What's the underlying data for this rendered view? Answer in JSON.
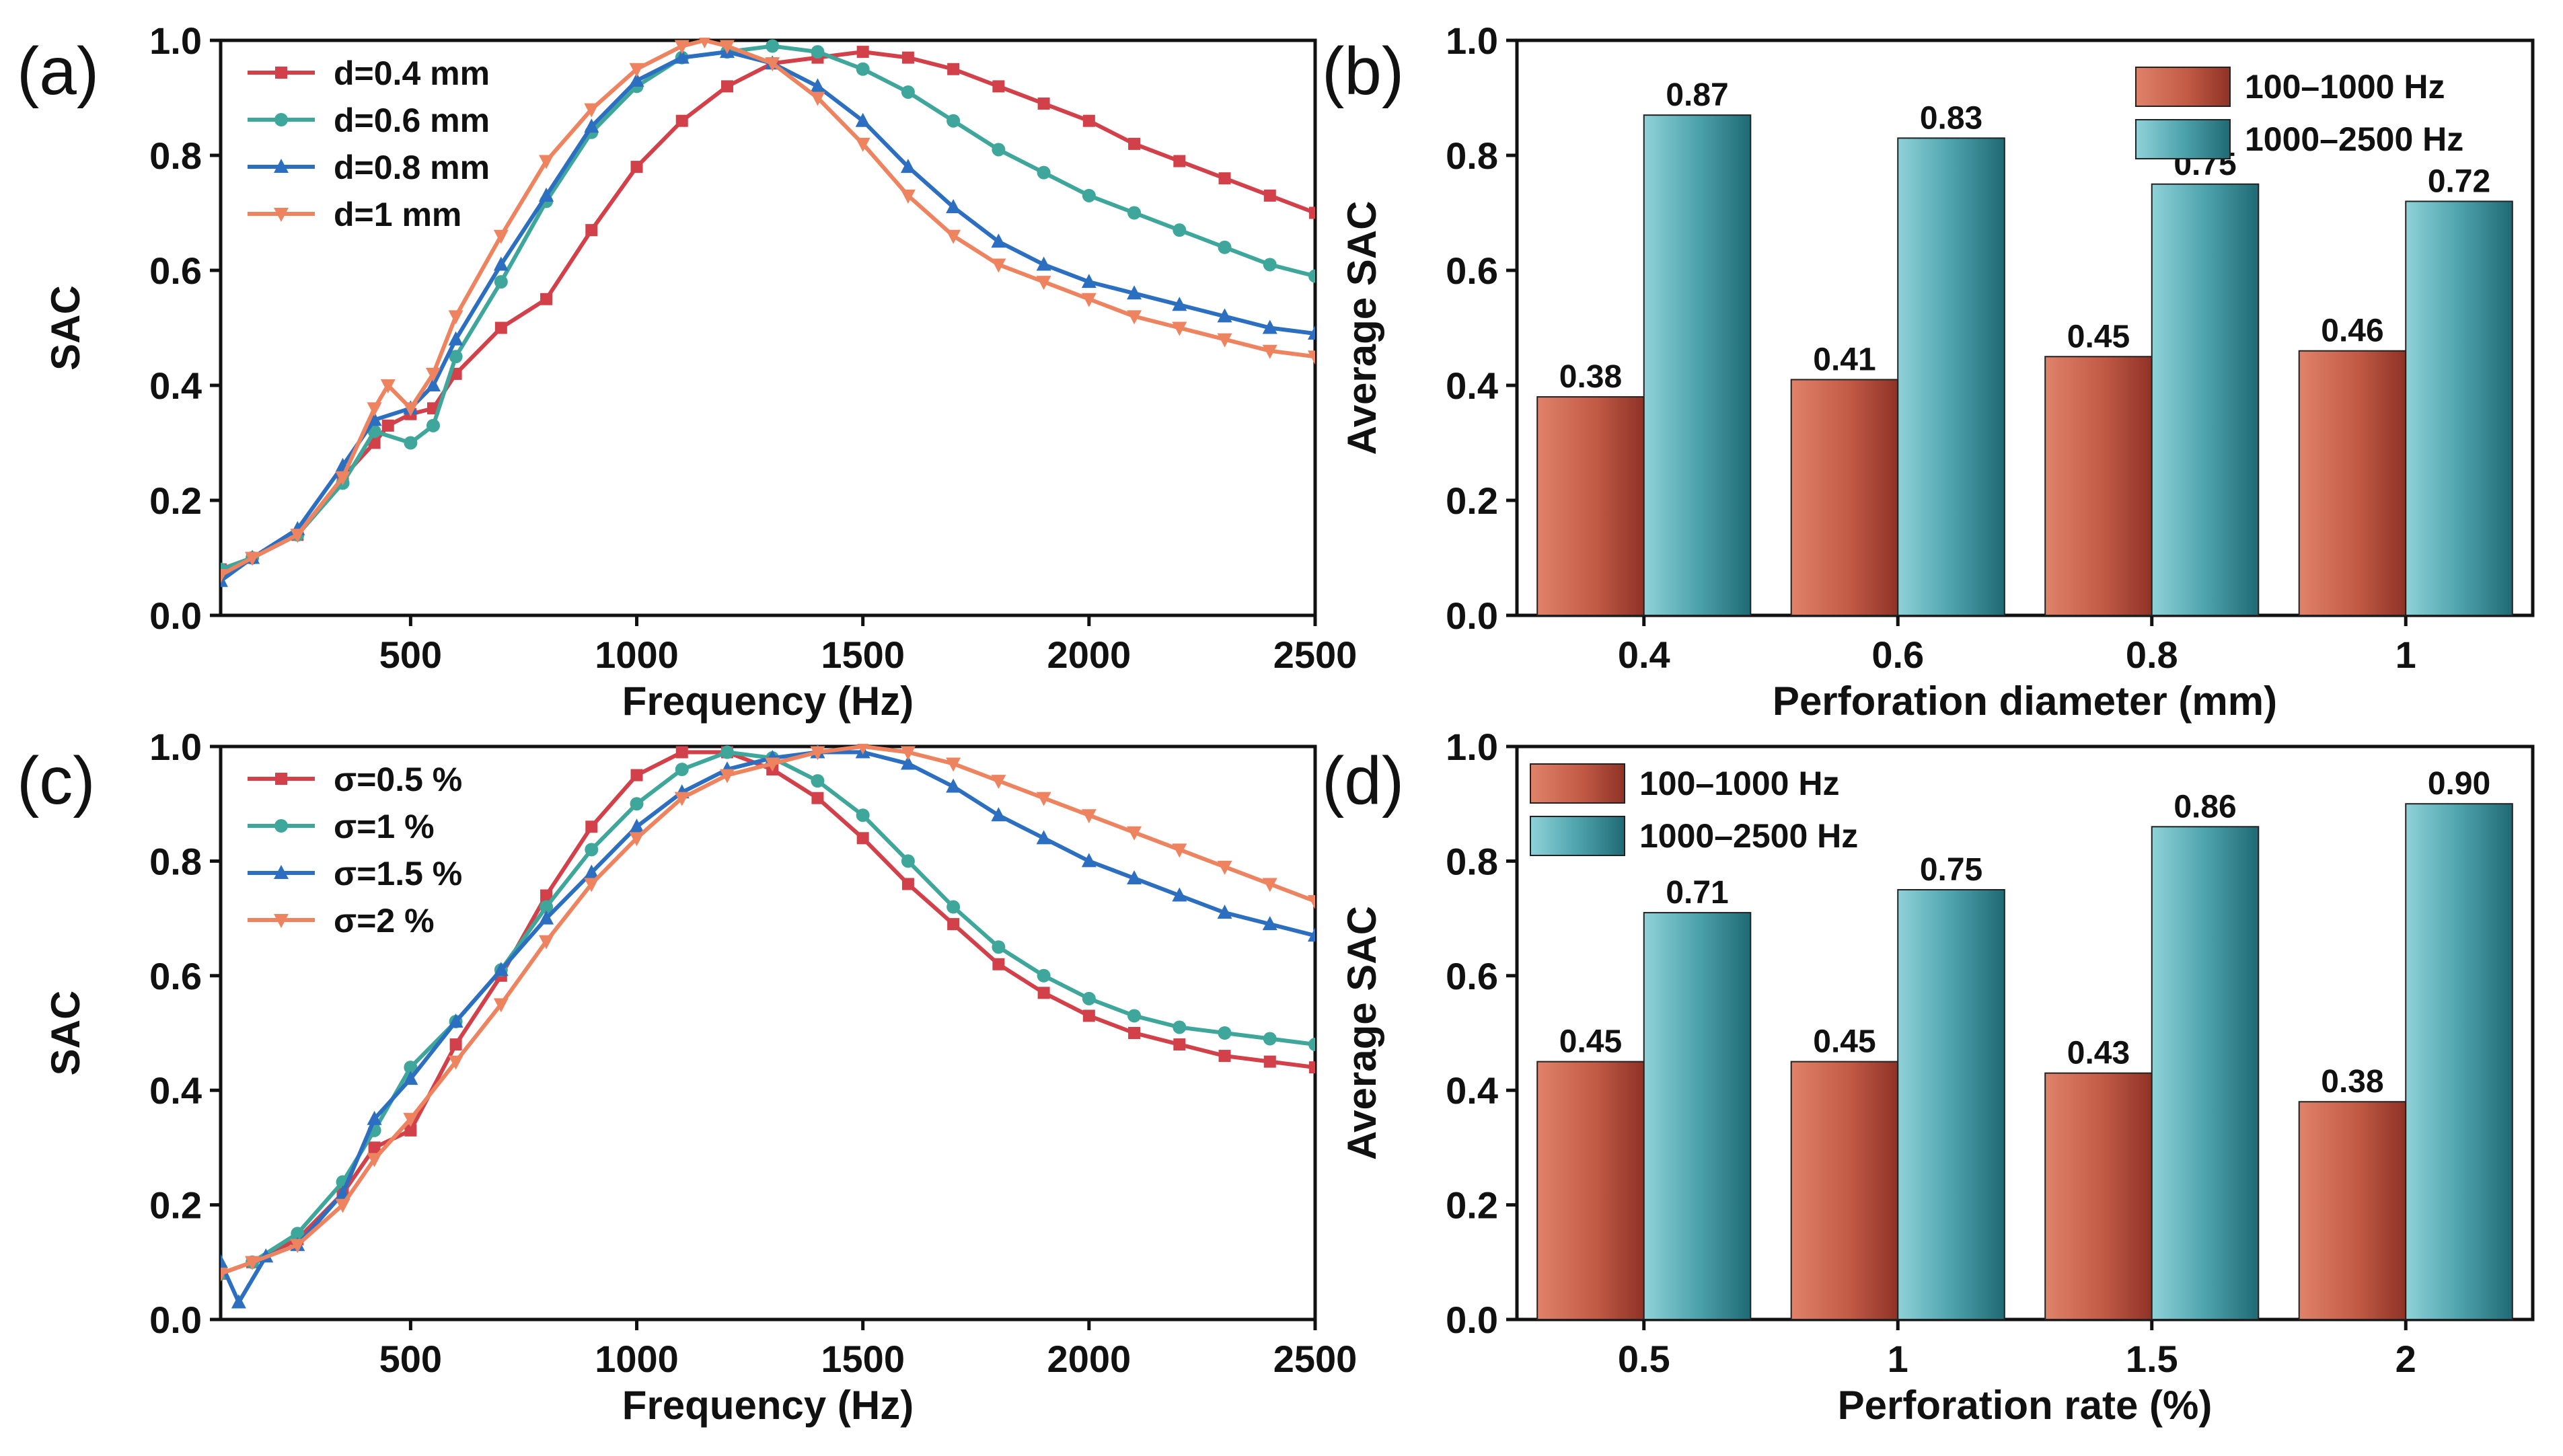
{
  "chart_data": [
    {
      "panel": "(a)",
      "type": "line",
      "xlabel": "Frequency (Hz)",
      "ylabel": "SAC",
      "xlim": [
        80,
        2500
      ],
      "ylim": [
        0,
        1.0
      ],
      "xticks": [
        500,
        1000,
        1500,
        2000,
        2500
      ],
      "yticks": [
        0.0,
        0.2,
        0.4,
        0.6,
        0.8,
        1.0
      ],
      "legend": "top-left",
      "series": [
        {
          "name": "d=0.4 mm",
          "color": "#d2404a",
          "marker": "square",
          "x": [
            80,
            150,
            250,
            350,
            420,
            450,
            500,
            550,
            600,
            700,
            800,
            900,
            1000,
            1100,
            1200,
            1300,
            1400,
            1500,
            1600,
            1700,
            1800,
            1900,
            2000,
            2100,
            2200,
            2300,
            2400,
            2500
          ],
          "y": [
            0.08,
            0.1,
            0.14,
            0.24,
            0.3,
            0.33,
            0.35,
            0.36,
            0.42,
            0.5,
            0.55,
            0.67,
            0.78,
            0.86,
            0.92,
            0.96,
            0.97,
            0.98,
            0.97,
            0.95,
            0.92,
            0.89,
            0.86,
            0.82,
            0.79,
            0.76,
            0.73,
            0.7
          ]
        },
        {
          "name": "d=0.6 mm",
          "color": "#3ea69a",
          "marker": "circle",
          "x": [
            80,
            150,
            250,
            350,
            420,
            500,
            550,
            600,
            700,
            800,
            900,
            1000,
            1100,
            1200,
            1300,
            1400,
            1500,
            1600,
            1700,
            1800,
            1900,
            2000,
            2100,
            2200,
            2300,
            2400,
            2500
          ],
          "y": [
            0.08,
            0.1,
            0.14,
            0.23,
            0.32,
            0.3,
            0.33,
            0.45,
            0.58,
            0.72,
            0.84,
            0.92,
            0.97,
            0.98,
            0.99,
            0.98,
            0.95,
            0.91,
            0.86,
            0.81,
            0.77,
            0.73,
            0.7,
            0.67,
            0.64,
            0.61,
            0.59
          ]
        },
        {
          "name": "d=0.8 mm",
          "color": "#2c6fc0",
          "marker": "triangle",
          "x": [
            80,
            150,
            250,
            350,
            420,
            500,
            550,
            600,
            700,
            800,
            900,
            1000,
            1100,
            1200,
            1300,
            1400,
            1500,
            1600,
            1700,
            1800,
            1900,
            2000,
            2100,
            2200,
            2300,
            2400,
            2500
          ],
          "y": [
            0.06,
            0.1,
            0.15,
            0.26,
            0.34,
            0.36,
            0.4,
            0.48,
            0.61,
            0.73,
            0.85,
            0.93,
            0.97,
            0.98,
            0.96,
            0.92,
            0.86,
            0.78,
            0.71,
            0.65,
            0.61,
            0.58,
            0.56,
            0.54,
            0.52,
            0.5,
            0.49
          ]
        },
        {
          "name": "d=1 mm",
          "color": "#ee8360",
          "marker": "triangle-down",
          "x": [
            80,
            150,
            250,
            350,
            420,
            450,
            500,
            550,
            600,
            700,
            800,
            900,
            1000,
            1100,
            1150,
            1200,
            1300,
            1400,
            1500,
            1600,
            1700,
            1800,
            1900,
            2000,
            2100,
            2200,
            2300,
            2400,
            2500
          ],
          "y": [
            0.07,
            0.1,
            0.14,
            0.24,
            0.36,
            0.4,
            0.36,
            0.42,
            0.52,
            0.66,
            0.79,
            0.88,
            0.95,
            0.99,
            1.0,
            0.99,
            0.96,
            0.9,
            0.82,
            0.73,
            0.66,
            0.61,
            0.58,
            0.55,
            0.52,
            0.5,
            0.48,
            0.46,
            0.45
          ]
        }
      ]
    },
    {
      "panel": "(b)",
      "type": "bar",
      "xlabel": "Perforation diameter (mm)",
      "ylabel": "Average SAC",
      "ylim": [
        0,
        1.0
      ],
      "yticks": [
        0.0,
        0.2,
        0.4,
        0.6,
        0.8,
        1.0
      ],
      "categories": [
        "0.4",
        "0.6",
        "0.8",
        "1"
      ],
      "legend": "top-right",
      "series": [
        {
          "name": "100–1000 Hz",
          "color": "#c9604a",
          "values": [
            0.38,
            0.41,
            0.45,
            0.46
          ],
          "labels": [
            "0.38",
            "0.41",
            "0.45",
            "0.46"
          ]
        },
        {
          "name": "1000–2500 Hz",
          "color": "#4ca7b2",
          "values": [
            0.87,
            0.83,
            0.75,
            0.72
          ],
          "labels": [
            "0.87",
            "0.83",
            "0.75",
            "0.72"
          ]
        }
      ]
    },
    {
      "panel": "(c)",
      "type": "line",
      "xlabel": "Frequency (Hz)",
      "ylabel": "SAC",
      "xlim": [
        80,
        2500
      ],
      "ylim": [
        0,
        1.0
      ],
      "xticks": [
        500,
        1000,
        1500,
        2000,
        2500
      ],
      "yticks": [
        0.0,
        0.2,
        0.4,
        0.6,
        0.8,
        1.0
      ],
      "legend": "top-left",
      "series": [
        {
          "name": "σ=0.5 %",
          "color": "#d2404a",
          "marker": "square",
          "x": [
            80,
            150,
            250,
            350,
            420,
            500,
            600,
            700,
            800,
            900,
            1000,
            1100,
            1200,
            1300,
            1400,
            1500,
            1600,
            1700,
            1800,
            1900,
            2000,
            2100,
            2200,
            2300,
            2400,
            2500
          ],
          "y": [
            0.08,
            0.1,
            0.14,
            0.22,
            0.3,
            0.33,
            0.48,
            0.6,
            0.74,
            0.86,
            0.95,
            0.99,
            0.99,
            0.96,
            0.91,
            0.84,
            0.76,
            0.69,
            0.62,
            0.57,
            0.53,
            0.5,
            0.48,
            0.46,
            0.45,
            0.44
          ]
        },
        {
          "name": "σ=1 %",
          "color": "#3ea69a",
          "marker": "circle",
          "x": [
            80,
            150,
            250,
            350,
            420,
            500,
            600,
            700,
            800,
            900,
            1000,
            1100,
            1200,
            1300,
            1400,
            1500,
            1600,
            1700,
            1800,
            1900,
            2000,
            2100,
            2200,
            2300,
            2400,
            2500
          ],
          "y": [
            0.08,
            0.1,
            0.15,
            0.24,
            0.33,
            0.44,
            0.52,
            0.61,
            0.72,
            0.82,
            0.9,
            0.96,
            0.99,
            0.98,
            0.94,
            0.88,
            0.8,
            0.72,
            0.65,
            0.6,
            0.56,
            0.53,
            0.51,
            0.5,
            0.49,
            0.48
          ]
        },
        {
          "name": "σ=1.5 %",
          "color": "#2c6fc0",
          "marker": "triangle",
          "x": [
            80,
            120,
            180,
            250,
            350,
            420,
            500,
            600,
            700,
            800,
            900,
            1000,
            1100,
            1200,
            1300,
            1400,
            1500,
            1600,
            1700,
            1800,
            1900,
            2000,
            2100,
            2200,
            2300,
            2400,
            2500
          ],
          "y": [
            0.1,
            0.03,
            0.11,
            0.13,
            0.22,
            0.35,
            0.42,
            0.52,
            0.61,
            0.7,
            0.78,
            0.86,
            0.92,
            0.96,
            0.98,
            0.99,
            0.99,
            0.97,
            0.93,
            0.88,
            0.84,
            0.8,
            0.77,
            0.74,
            0.71,
            0.69,
            0.67
          ]
        },
        {
          "name": "σ=2 %",
          "color": "#ee8360",
          "marker": "triangle-down",
          "x": [
            80,
            150,
            250,
            350,
            420,
            500,
            600,
            700,
            800,
            900,
            1000,
            1100,
            1200,
            1300,
            1400,
            1500,
            1600,
            1700,
            1800,
            1900,
            2000,
            2100,
            2200,
            2300,
            2400,
            2500
          ],
          "y": [
            0.08,
            0.1,
            0.13,
            0.2,
            0.28,
            0.35,
            0.45,
            0.55,
            0.66,
            0.76,
            0.84,
            0.91,
            0.95,
            0.97,
            0.99,
            1.0,
            0.99,
            0.97,
            0.94,
            0.91,
            0.88,
            0.85,
            0.82,
            0.79,
            0.76,
            0.73
          ]
        }
      ]
    },
    {
      "panel": "(d)",
      "type": "bar",
      "xlabel": "Perforation rate (%)",
      "ylabel": "Average SAC",
      "ylim": [
        0,
        1.0
      ],
      "yticks": [
        0.0,
        0.2,
        0.4,
        0.6,
        0.8,
        1.0
      ],
      "categories": [
        "0.5",
        "1",
        "1.5",
        "2"
      ],
      "legend": "top-left",
      "series": [
        {
          "name": "100–1000 Hz",
          "color": "#c9604a",
          "values": [
            0.45,
            0.45,
            0.43,
            0.38
          ],
          "labels": [
            "0.45",
            "0.45",
            "0.43",
            "0.38"
          ]
        },
        {
          "name": "1000–2500 Hz",
          "color": "#4ca7b2",
          "values": [
            0.71,
            0.75,
            0.86,
            0.9
          ],
          "labels": [
            "0.71",
            "0.75",
            "0.86",
            "0.90"
          ]
        }
      ]
    }
  ]
}
